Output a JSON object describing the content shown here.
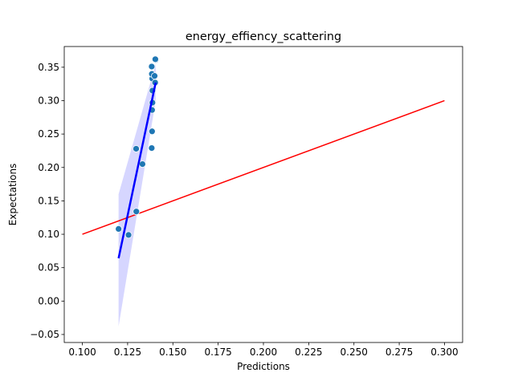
{
  "chart_data": {
    "type": "scatter",
    "title": "energy_effiency_scattering",
    "xlabel": "Predictions",
    "ylabel": "Expectations",
    "xlim": [
      0.09,
      0.31
    ],
    "ylim": [
      -0.062,
      0.381
    ],
    "xticks": [
      0.1,
      0.125,
      0.15,
      0.175,
      0.2,
      0.225,
      0.25,
      0.275,
      0.3
    ],
    "xtick_labels": [
      "0.100",
      "0.125",
      "0.150",
      "0.175",
      "0.200",
      "0.225",
      "0.250",
      "0.275",
      "0.300"
    ],
    "yticks": [
      -0.05,
      0.0,
      0.05,
      0.1,
      0.15,
      0.2,
      0.25,
      0.3,
      0.35
    ],
    "ytick_labels": [
      "−0.05",
      "0.00",
      "0.05",
      "0.10",
      "0.15",
      "0.20",
      "0.25",
      "0.30",
      "0.35"
    ],
    "grid": false,
    "points": {
      "color": "#1f77b4",
      "x": [
        0.12,
        0.1255,
        0.1298,
        0.1297,
        0.1332,
        0.1383,
        0.1385,
        0.1385,
        0.1387,
        0.1387,
        0.1386,
        0.1384,
        0.1383,
        0.1402,
        0.1399,
        0.1405,
        0.1403
      ],
      "y": [
        0.108,
        0.099,
        0.134,
        0.228,
        0.205,
        0.229,
        0.254,
        0.286,
        0.297,
        0.315,
        0.333,
        0.34,
        0.351,
        0.327,
        0.337,
        0.361,
        0.362
      ]
    },
    "regression": {
      "color": "#0000ff",
      "band_color": "#c8c8ff",
      "x": [
        0.12,
        0.1405
      ],
      "y": [
        0.064,
        0.327
      ],
      "band_lower": [
        -0.038,
        0.3
      ],
      "band_upper": [
        0.16,
        0.355
      ]
    },
    "reference_line": {
      "color": "#ff0000",
      "x": [
        0.1,
        0.3
      ],
      "y": [
        0.1,
        0.3
      ]
    }
  }
}
